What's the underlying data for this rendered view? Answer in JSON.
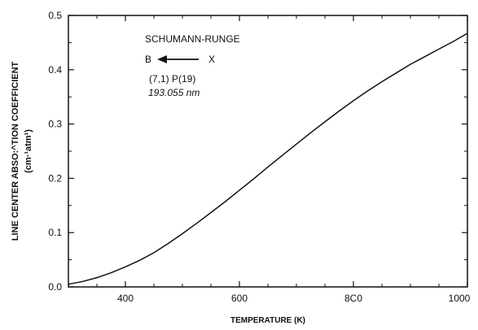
{
  "chart_data": {
    "type": "line",
    "title": "",
    "xlabel": "TEMPERATURE (K)",
    "ylabel_line1": "LINE CENTER ABSO:^TION COEFFICIENT",
    "ylabel_line2": "(cm·¹atm¹)",
    "xlim": [
      300,
      1000
    ],
    "ylim": [
      0,
      0.5
    ],
    "x_ticks": [
      400,
      600,
      800,
      1000
    ],
    "x_tick_labels": [
      "400",
      "600",
      "8C0",
      "1000"
    ],
    "y_ticks": [
      0.0,
      0.1,
      0.2,
      0.3,
      0.4,
      0.5
    ],
    "y_tick_labels": [
      "0.0",
      "0.1",
      "0.2",
      "0.3",
      "0.4",
      "0.5"
    ],
    "grid": false,
    "series": [
      {
        "x": [
          300,
          325,
          350,
          375,
          400,
          425,
          450,
          475,
          500,
          525,
          550,
          575,
          600,
          625,
          650,
          675,
          700,
          725,
          750,
          775,
          800,
          825,
          850,
          875,
          900,
          925,
          950,
          975,
          1000
        ],
        "y": [
          0.005,
          0.01,
          0.017,
          0.026,
          0.037,
          0.049,
          0.063,
          0.08,
          0.098,
          0.117,
          0.137,
          0.157,
          0.178,
          0.199,
          0.221,
          0.242,
          0.263,
          0.284,
          0.304,
          0.324,
          0.343,
          0.361,
          0.378,
          0.394,
          0.41,
          0.424,
          0.438,
          0.452,
          0.467
        ]
      }
    ],
    "annotations": {
      "line1": "SCHUMANN-RUNGE",
      "from_state": "B",
      "to_state": "X",
      "line3": "(7,1)  P(19)",
      "line4": "193.055 nm"
    }
  },
  "colors": {
    "line": "#111111",
    "axes": "#111111",
    "background": "#ffffff"
  }
}
